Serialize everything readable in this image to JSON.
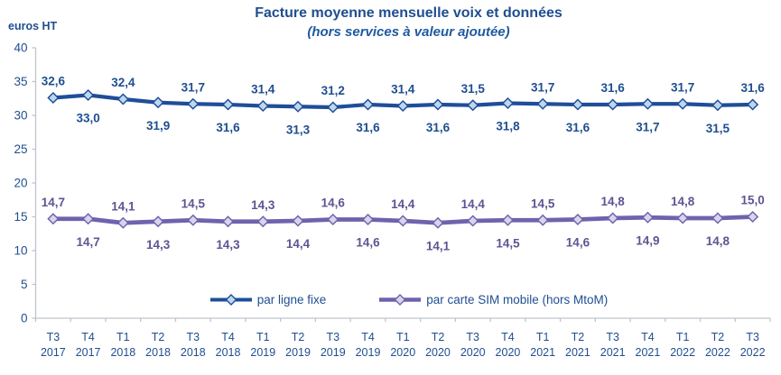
{
  "header": {
    "title": "Facture moyenne mensuelle voix et données",
    "subtitle": "(hors services à valeur ajoutée)"
  },
  "chart_data": {
    "type": "line",
    "title": "Facture moyenne mensuelle voix et données",
    "subtitle": "(hors services à valeur ajoutée)",
    "ylabel": "euros HT",
    "xlabel": "",
    "ylim": [
      0,
      40
    ],
    "ytick_step": 5,
    "grid": false,
    "legend_position": "bottom-inside",
    "decimal_separator": ",",
    "text_color": "#1F4E8F",
    "axis_color": "#BFC5CE",
    "categories": [
      {
        "quarter": "T3",
        "year": "2017"
      },
      {
        "quarter": "T4",
        "year": "2017"
      },
      {
        "quarter": "T1",
        "year": "2018"
      },
      {
        "quarter": "T2",
        "year": "2018"
      },
      {
        "quarter": "T3",
        "year": "2018"
      },
      {
        "quarter": "T4",
        "year": "2018"
      },
      {
        "quarter": "T1",
        "year": "2019"
      },
      {
        "quarter": "T2",
        "year": "2019"
      },
      {
        "quarter": "T3",
        "year": "2019"
      },
      {
        "quarter": "T4",
        "year": "2019"
      },
      {
        "quarter": "T1",
        "year": "2020"
      },
      {
        "quarter": "T2",
        "year": "2020"
      },
      {
        "quarter": "T3",
        "year": "2020"
      },
      {
        "quarter": "T4",
        "year": "2020"
      },
      {
        "quarter": "T1",
        "year": "2021"
      },
      {
        "quarter": "T2",
        "year": "2021"
      },
      {
        "quarter": "T3",
        "year": "2021"
      },
      {
        "quarter": "T4",
        "year": "2021"
      },
      {
        "quarter": "T1",
        "year": "2022"
      },
      {
        "quarter": "T2",
        "year": "2022"
      },
      {
        "quarter": "T3",
        "year": "2022"
      }
    ],
    "series": [
      {
        "name": "par ligne fixe",
        "color": "#1F4E99",
        "marker_fill": "#BDD7EE",
        "label_color": "#1F4E8F",
        "values": [
          32.6,
          33.0,
          32.4,
          31.9,
          31.7,
          31.6,
          31.4,
          31.3,
          31.2,
          31.6,
          31.4,
          31.6,
          31.5,
          31.8,
          31.7,
          31.6,
          31.6,
          31.7,
          31.7,
          31.5,
          31.6
        ]
      },
      {
        "name": "par carte SIM mobile (hors MtoM)",
        "color": "#6E63AD",
        "marker_fill": "#D8D5EB",
        "label_color": "#5D5493",
        "values": [
          14.7,
          14.7,
          14.1,
          14.3,
          14.5,
          14.3,
          14.3,
          14.4,
          14.6,
          14.6,
          14.4,
          14.1,
          14.4,
          14.5,
          14.5,
          14.6,
          14.8,
          14.9,
          14.8,
          14.8,
          15.0
        ]
      }
    ]
  }
}
